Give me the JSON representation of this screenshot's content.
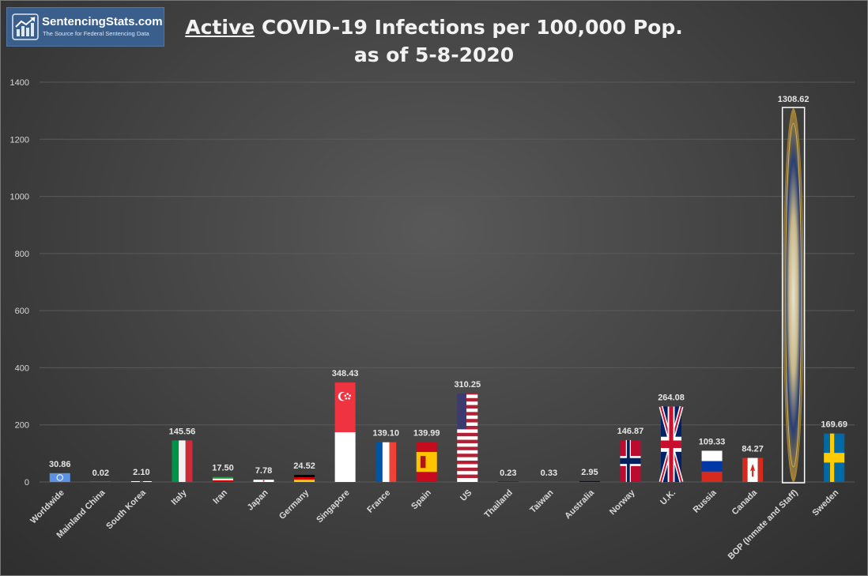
{
  "logo": {
    "name": "SentencingStats.com",
    "tagline": "The Source for Federal Sentencing Data"
  },
  "title": {
    "emphasis": "Active",
    "line1_rest": " COVID-19 Infections per 100,000 Pop.",
    "line2": "as of 5-8-2020"
  },
  "colors": {
    "background": "#3d3d3d",
    "grid": "#5a5a5a",
    "text": "#d9d9d9",
    "logo_bg": "#3b5f8c"
  },
  "chart_data": {
    "type": "bar",
    "title": "Active COVID-19 Infections per 100,000 Pop. as of 5-8-2020",
    "xlabel": "",
    "ylabel": "",
    "ylim": [
      0,
      1400
    ],
    "yticks": [
      0,
      200,
      400,
      600,
      800,
      1000,
      1200,
      1400
    ],
    "grid": true,
    "legend": "none",
    "categories": [
      "Worldwide",
      "Mainland China",
      "South Korea",
      "Italy",
      "Iran",
      "Japan",
      "Germany",
      "Singapore",
      "France",
      "Spain",
      "US",
      "Thailand",
      "Taiwan",
      "Australia",
      "Norway",
      "U.K.",
      "Russia",
      "Canada",
      "BOP (Inmate and Staff)",
      "Sweden"
    ],
    "values": [
      30.86,
      0.02,
      2.1,
      145.56,
      17.5,
      7.78,
      24.52,
      348.43,
      139.1,
      139.99,
      310.25,
      0.23,
      0.33,
      2.95,
      146.87,
      264.08,
      109.33,
      84.27,
      1308.62,
      169.69
    ],
    "data_labels": [
      "30.86",
      "0.02",
      "2.10",
      "145.56",
      "17.50",
      "7.78",
      "24.52",
      "348.43",
      "139.10",
      "139.99",
      "310.25",
      "0.23",
      "0.33",
      "2.95",
      "146.87",
      "264.08",
      "109.33",
      "84.27",
      "1308.62",
      "169.69"
    ],
    "bar_fills": [
      "un-flag",
      "china-flag",
      "south-korea-flag",
      "italy-flag",
      "iran-flag",
      "japan-flag",
      "germany-flag",
      "singapore-flag",
      "france-flag",
      "spain-flag",
      "us-flag",
      "thailand-flag",
      "taiwan-flag",
      "australia-flag",
      "norway-flag",
      "uk-flag",
      "russia-flag",
      "canada-flag",
      "bop-seal",
      "sweden-flag"
    ]
  }
}
